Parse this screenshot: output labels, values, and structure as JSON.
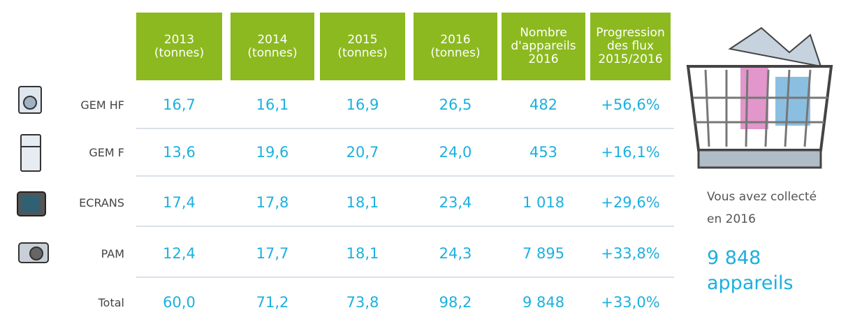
{
  "table": {
    "headers": [
      [
        "2013",
        "(tonnes)"
      ],
      [
        "2014",
        "(tonnes)"
      ],
      [
        "2015",
        "(tonnes)"
      ],
      [
        "2016",
        "(tonnes)"
      ],
      [
        "Nombre",
        "d'appareils",
        "2016"
      ],
      [
        "Progression",
        "des flux",
        "2015/2016"
      ]
    ],
    "rows": [
      {
        "label": "GEM HF",
        "cells": [
          "16,7",
          "16,1",
          "16,9",
          "26,5",
          "482",
          "+56,6%"
        ]
      },
      {
        "label": "GEM F",
        "cells": [
          "13,6",
          "19,6",
          "20,7",
          "24,0",
          "453",
          "+16,1%"
        ]
      },
      {
        "label": "ECRANS",
        "cells": [
          "17,4",
          "17,8",
          "18,1",
          "23,4",
          "1 018",
          "+29,6%"
        ]
      },
      {
        "label": "PAM",
        "cells": [
          "12,4",
          "17,7",
          "18,1",
          "24,3",
          "7 895",
          "+33,8%"
        ]
      },
      {
        "label": "Total",
        "cells": [
          "60,0",
          "71,2",
          "73,8",
          "98,2",
          "9 848",
          "+33,0%"
        ]
      }
    ]
  },
  "side": {
    "text": [
      "Vous avez collecté",
      "en 2016"
    ],
    "highlight": [
      "9 848",
      "appareils"
    ]
  }
}
